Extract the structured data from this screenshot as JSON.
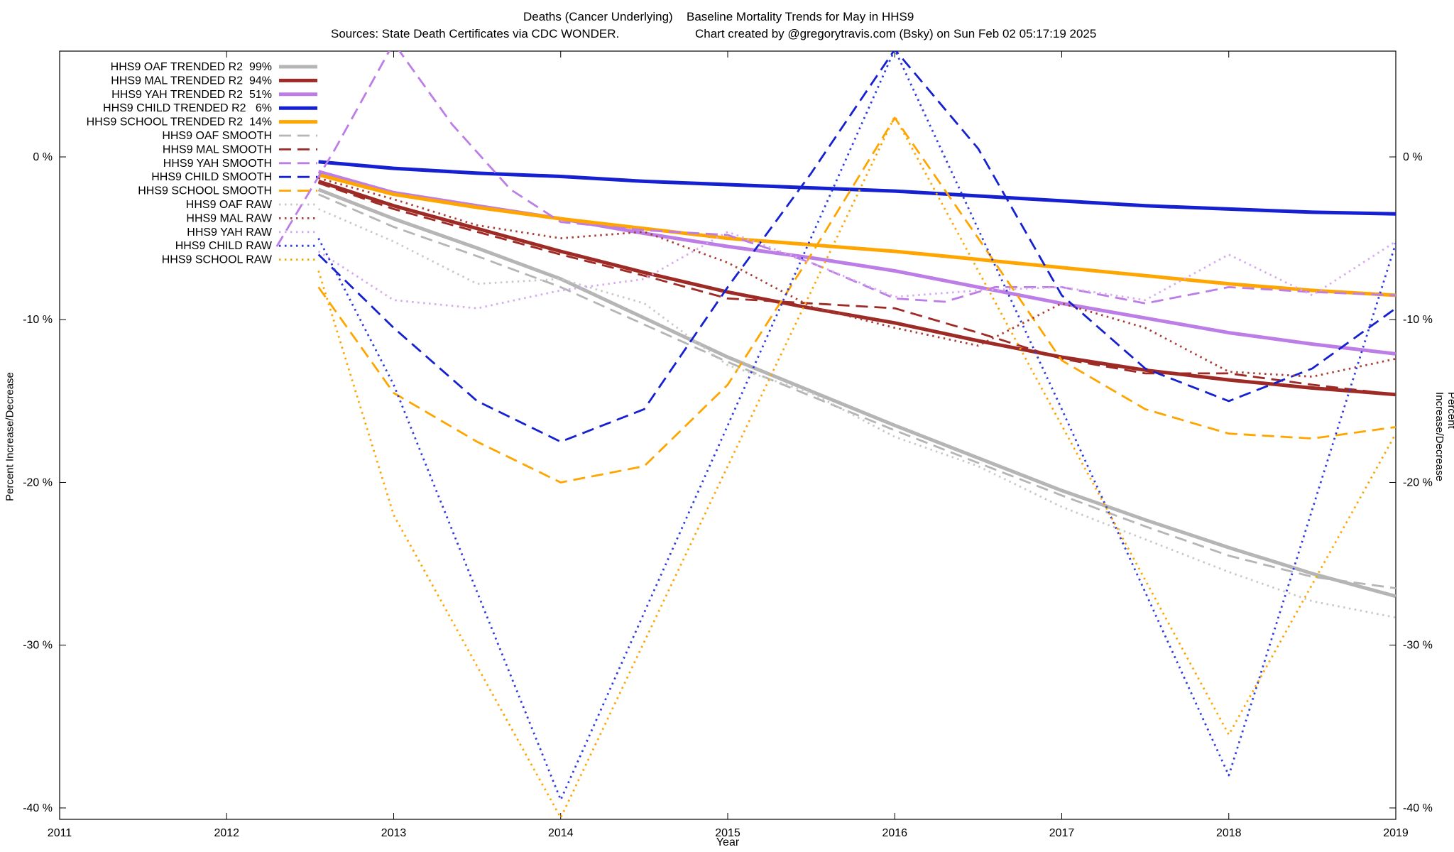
{
  "title": {
    "part1": "Deaths (Cancer Underlying)",
    "part2": "Baseline Mortality Trends for May in HHS9"
  },
  "subtitle": {
    "sources": "Sources: State Death Certificates via CDC WONDER.",
    "credit": "Chart created by @gregorytravis.com (Bsky) on Sun Feb 02 05:17:19 2025"
  },
  "chart_data": {
    "type": "line",
    "title": "Deaths (Cancer Underlying)  Baseline Mortality Trends for May in HHS9",
    "xlabel": "Year",
    "ylabel_left": "Percent Increase/Decrease",
    "ylabel_right": "Percent Increase/Decrease",
    "grid": false,
    "legend_position": "top-left-inside",
    "x_range": [
      2011,
      2019
    ],
    "y_range": [
      -40.7,
      6.5
    ],
    "x_ticks": [
      2011,
      2012,
      2013,
      2014,
      2015,
      2016,
      2017,
      2018,
      2019
    ],
    "y_ticks": [
      {
        "v": 0,
        "label": "0 %"
      },
      {
        "v": -10,
        "label": "-10 %"
      },
      {
        "v": -20,
        "label": "-20 %"
      },
      {
        "v": -30,
        "label": "-30 %"
      },
      {
        "v": -40,
        "label": "-40 %"
      }
    ],
    "x_grid": [
      2012.55,
      2013,
      2013.5,
      2014,
      2014.5,
      2015,
      2015.5,
      2016,
      2016.5,
      2017,
      2017.5,
      2018,
      2018.5,
      2019
    ],
    "series": [
      {
        "id": "oaf-trended",
        "label": "HHS9 OAF TRENDED R2  99%",
        "r2_percent": 99,
        "style": "trended",
        "color": "#b5b5b5",
        "y": [
          -2.0,
          -3.8,
          -5.6,
          -7.5,
          -9.9,
          -12.3,
          -14.4,
          -16.5,
          -18.5,
          -20.5,
          -22.3,
          -24.0,
          -25.6,
          -27.0
        ]
      },
      {
        "id": "mal-trended",
        "label": "HHS9 MAL TRENDED R2  94%",
        "r2_percent": 94,
        "style": "trended",
        "color": "#9e2a25",
        "y": [
          -1.5,
          -3.0,
          -4.4,
          -5.8,
          -7.1,
          -8.3,
          -9.3,
          -10.2,
          -11.3,
          -12.3,
          -13.1,
          -13.7,
          -14.2,
          -14.6
        ]
      },
      {
        "id": "yah-trended",
        "label": "HHS9 YAH TRENDED R2  51%",
        "r2_percent": 51,
        "style": "trended",
        "color": "#bd7de6",
        "y": [
          -0.9,
          -2.2,
          -3.0,
          -3.8,
          -4.7,
          -5.5,
          -6.2,
          -7.0,
          -8.0,
          -9.0,
          -9.9,
          -10.8,
          -11.5,
          -12.1
        ]
      },
      {
        "id": "child-trended",
        "label": "HHS9 CHILD TRENDED R2   6%",
        "r2_percent": 6,
        "style": "trended",
        "color": "#1520d0",
        "y": [
          -0.3,
          -0.7,
          -1.0,
          -1.2,
          -1.5,
          -1.7,
          -1.9,
          -2.1,
          -2.4,
          -2.7,
          -3.0,
          -3.2,
          -3.4,
          -3.5
        ]
      },
      {
        "id": "school-trended",
        "label": "HHS9 SCHOOL TRENDED R2  14%",
        "r2_percent": 14,
        "style": "trended",
        "color": "#ffa500",
        "y": [
          -1.1,
          -2.3,
          -3.1,
          -3.8,
          -4.4,
          -5.0,
          -5.4,
          -5.8,
          -6.3,
          -6.8,
          -7.3,
          -7.8,
          -8.2,
          -8.5
        ]
      },
      {
        "id": "oaf-smooth",
        "label": "HHS9 OAF SMOOTH",
        "style": "smooth",
        "color": "#b5b5b5",
        "y": [
          -2.3,
          -4.3,
          -6.1,
          -8.0,
          -10.3,
          -12.6,
          -14.7,
          -16.8,
          -18.8,
          -20.8,
          -22.7,
          -24.5,
          -25.8,
          -26.5
        ]
      },
      {
        "id": "mal-smooth",
        "label": "HHS9 MAL SMOOTH",
        "style": "smooth",
        "color": "#9e2a25",
        "y": [
          -1.6,
          -3.2,
          -4.6,
          -6.0,
          -7.3,
          -8.7,
          -9.0,
          -9.3,
          -10.8,
          -12.4,
          -13.3,
          -13.3,
          -14.0,
          -14.6
        ]
      },
      {
        "id": "yah-smooth",
        "label": "HHS9 YAH SMOOTH",
        "style": "smooth",
        "color": "#bd7de6",
        "x": [
          2012.3,
          2012.65,
          2013,
          2013.35,
          2013.7,
          2014,
          2014.5,
          2015,
          2015.5,
          2016,
          2016.3,
          2016.6,
          2017,
          2017.5,
          2018,
          2018.5,
          2019
        ],
        "y": [
          -5.5,
          0.5,
          7.0,
          2.0,
          -2.0,
          -4.0,
          -4.5,
          -4.8,
          -6.5,
          -8.7,
          -8.9,
          -8.0,
          -8.0,
          -9.0,
          -8.0,
          -8.3,
          -8.5
        ]
      },
      {
        "id": "child-smooth",
        "label": "HHS9 CHILD SMOOTH",
        "style": "smooth",
        "color": "#1520d0",
        "y": [
          -6.0,
          -10.5,
          -15.0,
          -17.5,
          -15.5,
          -8.0,
          -1.0,
          6.6,
          0.5,
          -8.5,
          -13.0,
          -15.0,
          -13.0,
          -9.3
        ]
      },
      {
        "id": "school-smooth",
        "label": "HHS9 SCHOOL SMOOTH",
        "style": "smooth",
        "color": "#ffa500",
        "y": [
          -8.0,
          -14.5,
          -17.5,
          -20.0,
          -19.0,
          -14.0,
          -6.0,
          2.4,
          -5.0,
          -12.5,
          -15.5,
          -17.0,
          -17.3,
          -16.6
        ]
      },
      {
        "id": "oaf-raw",
        "label": "HHS9 OAF RAW",
        "style": "raw",
        "color": "#c8c8c8",
        "y": [
          -3.2,
          -5.2,
          -7.8,
          -7.5,
          -9.0,
          -12.8,
          -14.5,
          -17.2,
          -19.0,
          -21.5,
          -23.5,
          -25.5,
          -27.3,
          -28.3
        ]
      },
      {
        "id": "mal-raw",
        "label": "HHS9 MAL RAW",
        "style": "raw",
        "color": "#a83d35",
        "y": [
          -1.3,
          -2.6,
          -4.2,
          -5.0,
          -4.6,
          -6.5,
          -9.2,
          -10.5,
          -11.6,
          -9.0,
          -10.5,
          -13.2,
          -13.5,
          -12.4
        ]
      },
      {
        "id": "yah-raw",
        "label": "HHS9 YAH RAW",
        "style": "raw",
        "color": "#d8a8f0",
        "y": [
          -5.8,
          -8.8,
          -9.3,
          -8.2,
          -7.5,
          -4.6,
          -6.5,
          -8.6,
          -8.2,
          -8.0,
          -8.8,
          -6.0,
          -8.5,
          -5.2
        ]
      },
      {
        "id": "child-raw",
        "label": "HHS9 CHILD RAW",
        "style": "raw",
        "color": "#2c3ae0",
        "x": [
          2012.55,
          2013,
          2014,
          2015,
          2016,
          2017,
          2018,
          2019
        ],
        "y": [
          -5.0,
          -14.0,
          -39.5,
          -16.5,
          6.6,
          -15.5,
          -38.0,
          -5.3
        ]
      },
      {
        "id": "school-raw",
        "label": "HHS9 SCHOOL RAW",
        "style": "raw",
        "color": "#ffa500",
        "x": [
          2012.55,
          2013,
          2014,
          2015,
          2016,
          2017,
          2018,
          2019
        ],
        "y": [
          -7.0,
          -22.0,
          -40.6,
          -19.0,
          2.5,
          -16.5,
          -35.5,
          -17.0
        ]
      }
    ]
  }
}
